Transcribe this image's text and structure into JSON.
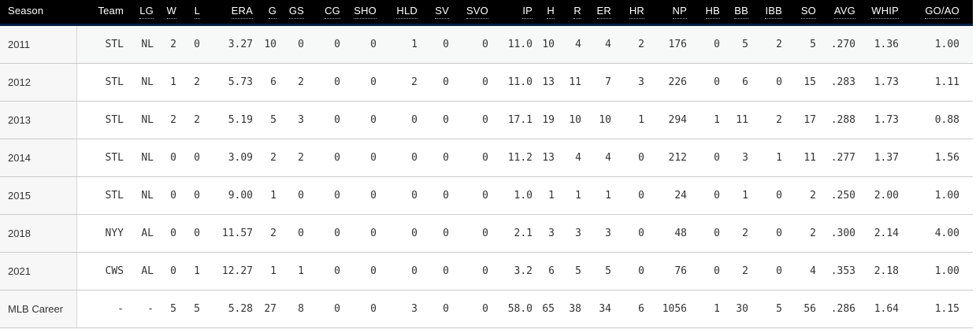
{
  "colors": {
    "header_bg": "#000000",
    "header_text": "#ffffff",
    "header_accent": "#041e42",
    "row_border": "#cbcbcb",
    "season_col_bg": "#f7f7f7",
    "season_col_border": "#d8d8d8",
    "first_row_bg": "#f7f8f8",
    "text": "#333333"
  },
  "table": {
    "columns": [
      {
        "key": "season",
        "label": "Season",
        "abbr": false
      },
      {
        "key": "team",
        "label": "Team",
        "abbr": false
      },
      {
        "key": "lg",
        "label": "LG",
        "abbr": true
      },
      {
        "key": "w",
        "label": "W",
        "abbr": true
      },
      {
        "key": "l",
        "label": "L",
        "abbr": true
      },
      {
        "key": "era",
        "label": "ERA",
        "abbr": true
      },
      {
        "key": "g",
        "label": "G",
        "abbr": true
      },
      {
        "key": "gs",
        "label": "GS",
        "abbr": true
      },
      {
        "key": "cg",
        "label": "CG",
        "abbr": true
      },
      {
        "key": "sho",
        "label": "SHO",
        "abbr": true
      },
      {
        "key": "hld",
        "label": "HLD",
        "abbr": true
      },
      {
        "key": "sv",
        "label": "SV",
        "abbr": true
      },
      {
        "key": "svo",
        "label": "SVO",
        "abbr": true
      },
      {
        "key": "ip",
        "label": "IP",
        "abbr": true
      },
      {
        "key": "h",
        "label": "H",
        "abbr": true
      },
      {
        "key": "r",
        "label": "R",
        "abbr": true
      },
      {
        "key": "er",
        "label": "ER",
        "abbr": true
      },
      {
        "key": "hr",
        "label": "HR",
        "abbr": true
      },
      {
        "key": "np",
        "label": "NP",
        "abbr": true
      },
      {
        "key": "hb",
        "label": "HB",
        "abbr": true
      },
      {
        "key": "bb",
        "label": "BB",
        "abbr": true
      },
      {
        "key": "ibb",
        "label": "IBB",
        "abbr": true
      },
      {
        "key": "so",
        "label": "SO",
        "abbr": true
      },
      {
        "key": "avg",
        "label": "AVG",
        "abbr": true
      },
      {
        "key": "whip",
        "label": "WHIP",
        "abbr": true
      },
      {
        "key": "goao",
        "label": "GO/AO",
        "abbr": true
      }
    ],
    "rows": [
      {
        "season": "2011",
        "team": "STL",
        "lg": "NL",
        "w": "2",
        "l": "0",
        "era": "3.27",
        "g": "10",
        "gs": "0",
        "cg": "0",
        "sho": "0",
        "hld": "1",
        "sv": "0",
        "svo": "0",
        "ip": "11.0",
        "h": "10",
        "r": "4",
        "er": "4",
        "hr": "2",
        "np": "176",
        "hb": "0",
        "bb": "5",
        "ibb": "2",
        "so": "5",
        "avg": ".270",
        "whip": "1.36",
        "goao": "1.00"
      },
      {
        "season": "2012",
        "team": "STL",
        "lg": "NL",
        "w": "1",
        "l": "2",
        "era": "5.73",
        "g": "6",
        "gs": "2",
        "cg": "0",
        "sho": "0",
        "hld": "2",
        "sv": "0",
        "svo": "0",
        "ip": "11.0",
        "h": "13",
        "r": "11",
        "er": "7",
        "hr": "3",
        "np": "226",
        "hb": "0",
        "bb": "6",
        "ibb": "0",
        "so": "15",
        "avg": ".283",
        "whip": "1.73",
        "goao": "1.11"
      },
      {
        "season": "2013",
        "team": "STL",
        "lg": "NL",
        "w": "2",
        "l": "2",
        "era": "5.19",
        "g": "5",
        "gs": "3",
        "cg": "0",
        "sho": "0",
        "hld": "0",
        "sv": "0",
        "svo": "0",
        "ip": "17.1",
        "h": "19",
        "r": "10",
        "er": "10",
        "hr": "1",
        "np": "294",
        "hb": "1",
        "bb": "11",
        "ibb": "2",
        "so": "17",
        "avg": ".288",
        "whip": "1.73",
        "goao": "0.88"
      },
      {
        "season": "2014",
        "team": "STL",
        "lg": "NL",
        "w": "0",
        "l": "0",
        "era": "3.09",
        "g": "2",
        "gs": "2",
        "cg": "0",
        "sho": "0",
        "hld": "0",
        "sv": "0",
        "svo": "0",
        "ip": "11.2",
        "h": "13",
        "r": "4",
        "er": "4",
        "hr": "0",
        "np": "212",
        "hb": "0",
        "bb": "3",
        "ibb": "1",
        "so": "11",
        "avg": ".277",
        "whip": "1.37",
        "goao": "1.56"
      },
      {
        "season": "2015",
        "team": "STL",
        "lg": "NL",
        "w": "0",
        "l": "0",
        "era": "9.00",
        "g": "1",
        "gs": "0",
        "cg": "0",
        "sho": "0",
        "hld": "0",
        "sv": "0",
        "svo": "0",
        "ip": "1.0",
        "h": "1",
        "r": "1",
        "er": "1",
        "hr": "0",
        "np": "24",
        "hb": "0",
        "bb": "1",
        "ibb": "0",
        "so": "2",
        "avg": ".250",
        "whip": "2.00",
        "goao": "1.00"
      },
      {
        "season": "2018",
        "team": "NYY",
        "lg": "AL",
        "w": "0",
        "l": "0",
        "era": "11.57",
        "g": "2",
        "gs": "0",
        "cg": "0",
        "sho": "0",
        "hld": "0",
        "sv": "0",
        "svo": "0",
        "ip": "2.1",
        "h": "3",
        "r": "3",
        "er": "3",
        "hr": "0",
        "np": "48",
        "hb": "0",
        "bb": "2",
        "ibb": "0",
        "so": "2",
        "avg": ".300",
        "whip": "2.14",
        "goao": "4.00"
      },
      {
        "season": "2021",
        "team": "CWS",
        "lg": "AL",
        "w": "0",
        "l": "1",
        "era": "12.27",
        "g": "1",
        "gs": "1",
        "cg": "0",
        "sho": "0",
        "hld": "0",
        "sv": "0",
        "svo": "0",
        "ip": "3.2",
        "h": "6",
        "r": "5",
        "er": "5",
        "hr": "0",
        "np": "76",
        "hb": "0",
        "bb": "2",
        "ibb": "0",
        "so": "4",
        "avg": ".353",
        "whip": "2.18",
        "goao": "1.00"
      },
      {
        "season": "MLB Career",
        "team": "-",
        "lg": "-",
        "w": "5",
        "l": "5",
        "era": "5.28",
        "g": "27",
        "gs": "8",
        "cg": "0",
        "sho": "0",
        "hld": "3",
        "sv": "0",
        "svo": "0",
        "ip": "58.0",
        "h": "65",
        "r": "38",
        "er": "34",
        "hr": "6",
        "np": "1056",
        "hb": "1",
        "bb": "30",
        "ibb": "5",
        "so": "56",
        "avg": ".286",
        "whip": "1.64",
        "goao": "1.15"
      }
    ]
  }
}
